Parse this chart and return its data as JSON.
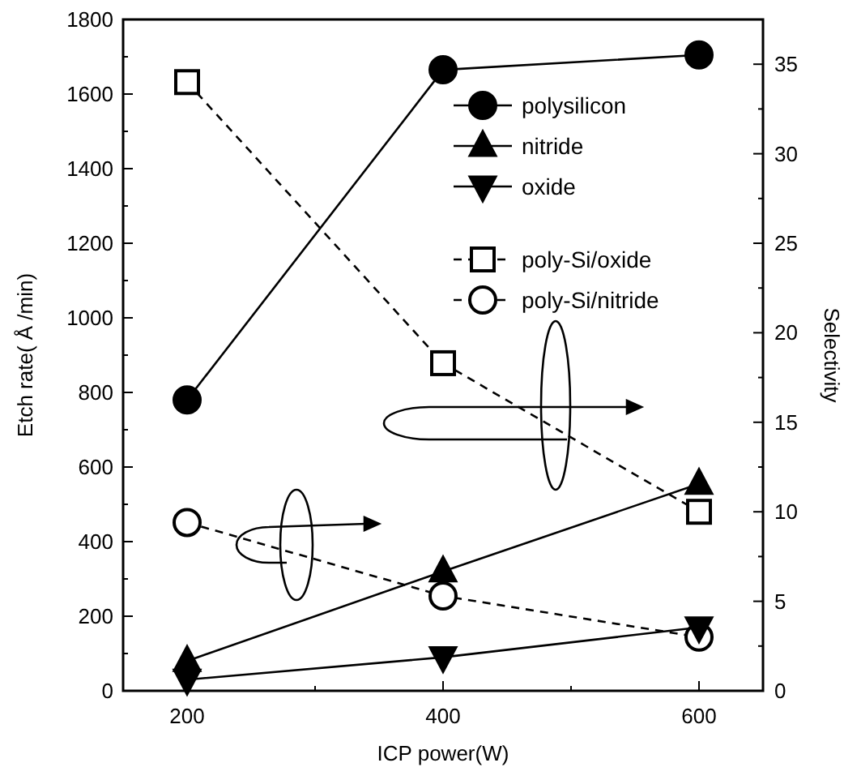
{
  "chart_data": {
    "type": "line",
    "xlabel": "ICP power(W)",
    "ylabel": "Etch rate( Å /min)",
    "y2label": "Selectivity",
    "x": [
      200,
      400,
      600
    ],
    "xlim": [
      150,
      650
    ],
    "xticks": [
      200,
      {
        "value": 300,
        "label": null
      },
      400,
      {
        "value": 500,
        "label": null
      },
      600
    ],
    "ylim": [
      0,
      1800
    ],
    "yticks": [
      0,
      {
        "value": 100,
        "label": null
      },
      200,
      {
        "value": 300,
        "label": null
      },
      400,
      {
        "value": 500,
        "label": null
      },
      600,
      {
        "value": 700,
        "label": null
      },
      800,
      {
        "value": 900,
        "label": null
      },
      1000,
      {
        "value": 1100,
        "label": null
      },
      1200,
      {
        "value": 1300,
        "label": null
      },
      1400,
      {
        "value": 1500,
        "label": null
      },
      1600,
      {
        "value": 1700,
        "label": null
      },
      1800
    ],
    "y2lim": [
      0,
      37.5
    ],
    "y2ticks": [
      0,
      {
        "value": 2.5,
        "label": null
      },
      5,
      {
        "value": 7.5,
        "label": null
      },
      10,
      {
        "value": 12.5,
        "label": null
      },
      15,
      {
        "value": 17.5,
        "label": null
      },
      20,
      {
        "value": 22.5,
        "label": null
      },
      25,
      {
        "value": 27.5,
        "label": null
      },
      30,
      {
        "value": 32.5,
        "label": null
      },
      35
    ],
    "grid": false,
    "legend": "top right",
    "series": [
      {
        "name": "polysilicon",
        "color": "#000000",
        "marker": "circle",
        "line_style": "solid",
        "values": [
          780,
          1665,
          1705
        ]
      },
      {
        "name": "nitride",
        "color": "#000000",
        "marker": "triangle",
        "line_style": "solid",
        "values": [
          80,
          320,
          555
        ]
      },
      {
        "name": "oxide",
        "color": "#000000",
        "marker": "triangle-down",
        "line_style": "solid",
        "values": [
          30,
          90,
          170
        ]
      },
      {
        "name": "poly-Si/oxide",
        "color": "#000000",
        "marker": "square",
        "line_style": "dashed",
        "axis": "y2",
        "values": [
          34,
          18.3,
          10
        ]
      },
      {
        "name": "poly-Si/nitride",
        "color": "#000000",
        "marker": "circle",
        "line_style": "dashed",
        "axis": "y2",
        "values": [
          9.4,
          5.3,
          3
        ]
      }
    ]
  }
}
